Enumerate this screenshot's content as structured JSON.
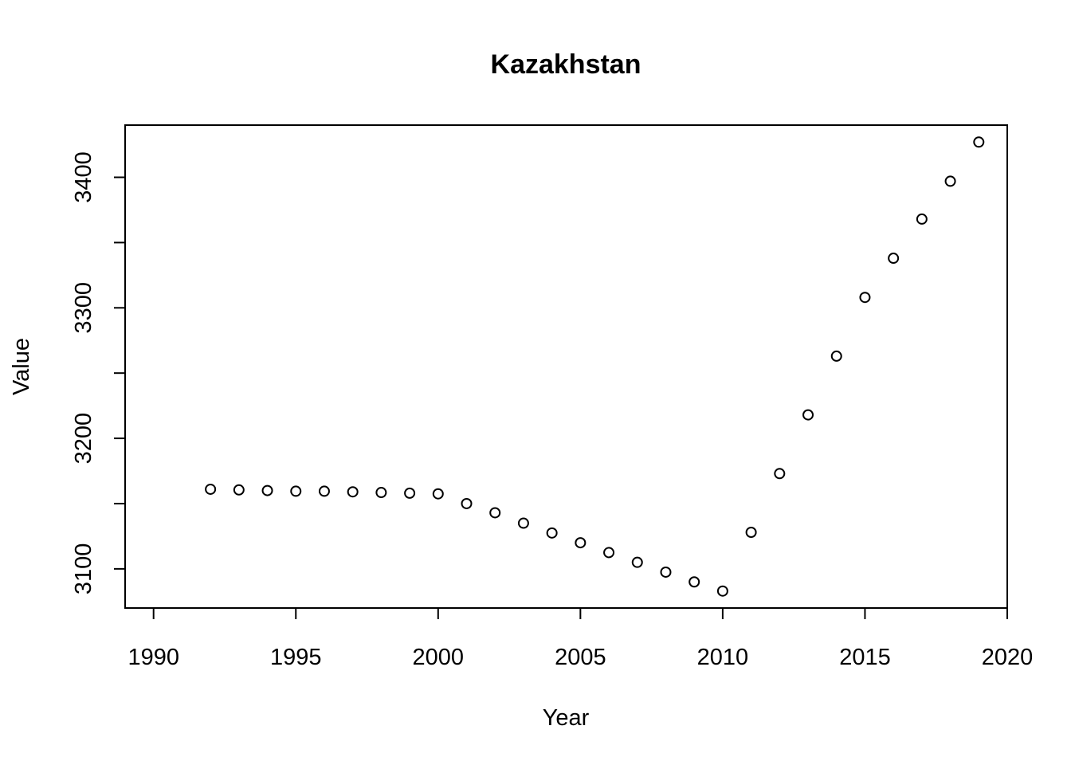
{
  "chart_data": {
    "type": "scatter",
    "title": "Kazakhstan",
    "xlabel": "Year",
    "ylabel": "Value",
    "xlim": [
      1989,
      2020
    ],
    "ylim": [
      3070,
      3440
    ],
    "xticks": [
      1990,
      1995,
      2000,
      2005,
      2010,
      2015,
      2020
    ],
    "yticks": [
      3100,
      3150,
      3200,
      3250,
      3300,
      3350,
      3400
    ],
    "ytick_labels": [
      "3100",
      "",
      "3200",
      "",
      "3300",
      "",
      "3400"
    ],
    "grid": false,
    "legend": "none",
    "series": [
      {
        "x": [
          1992,
          1993,
          1994,
          1995,
          1996,
          1997,
          1998,
          1999,
          2000,
          2001,
          2002,
          2003,
          2004,
          2005,
          2006,
          2007,
          2008,
          2009,
          2010,
          2011,
          2012,
          2013,
          2014,
          2015,
          2016,
          2017,
          2018,
          2019
        ],
        "y": [
          3161,
          3160.5,
          3160,
          3159.5,
          3159.5,
          3159,
          3158.5,
          3158,
          3157.5,
          3150,
          3143,
          3135,
          3127.5,
          3120,
          3112.5,
          3105,
          3097.5,
          3090,
          3083,
          3128,
          3173,
          3218,
          3263,
          3308,
          3338,
          3368,
          3397,
          3427
        ]
      }
    ]
  }
}
